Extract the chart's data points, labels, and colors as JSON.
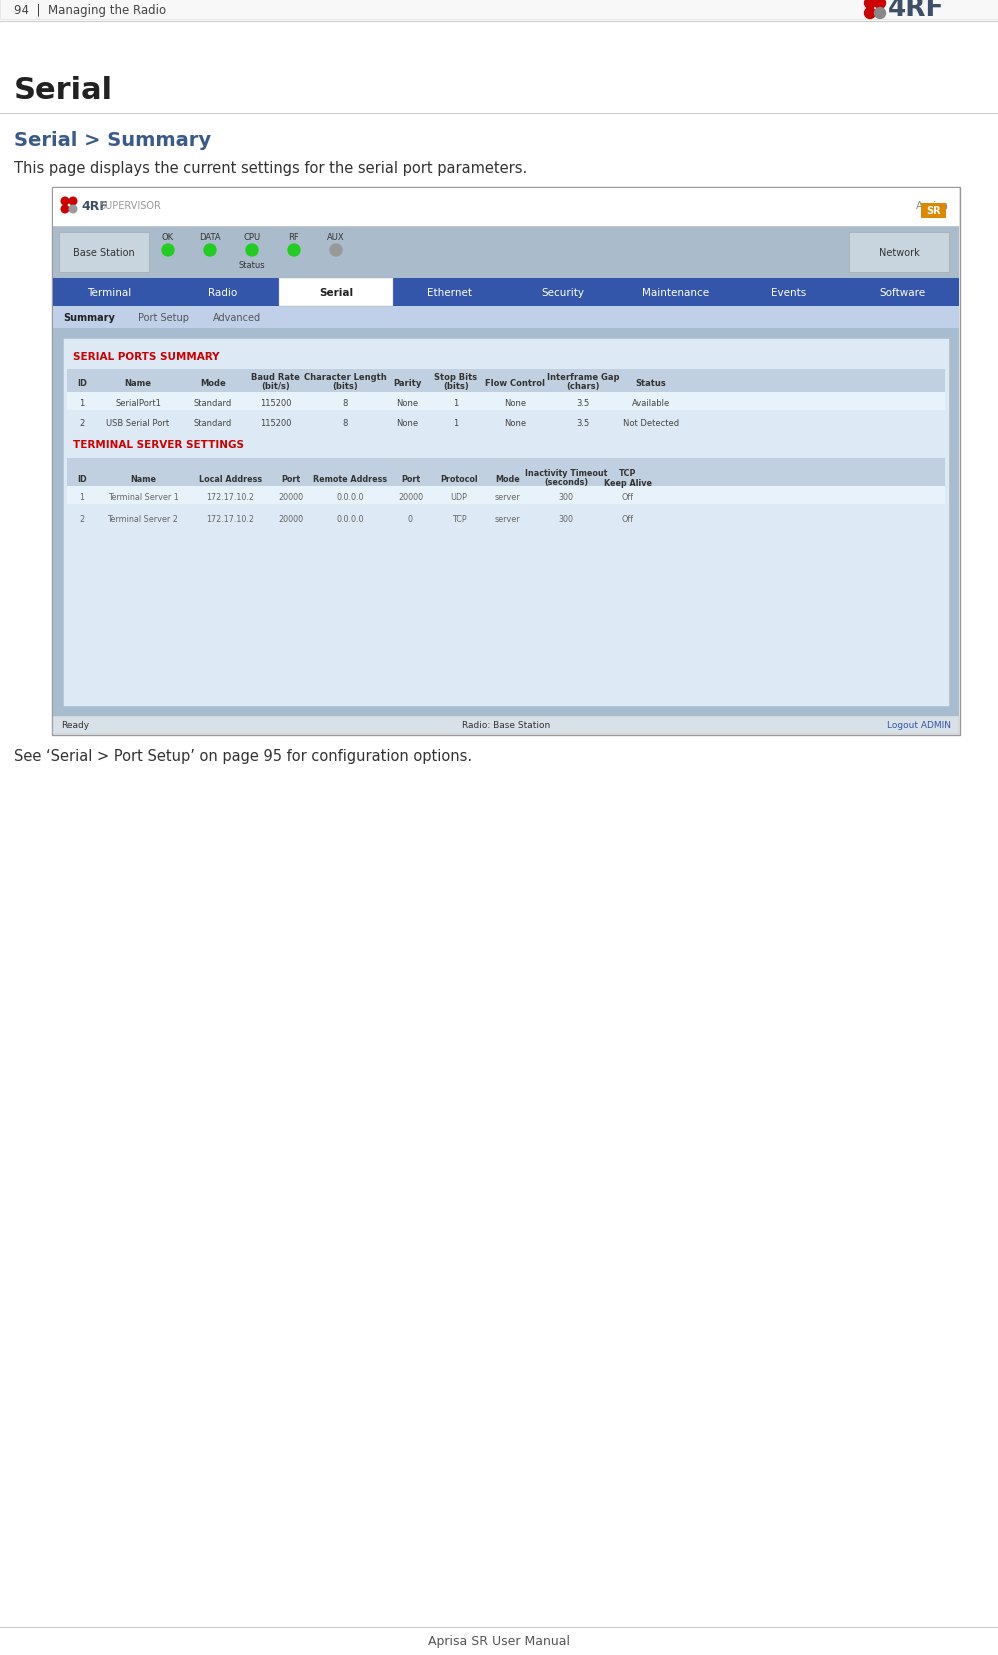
{
  "page_header": "94  |  Managing the Radio",
  "section_title": "Serial",
  "subsection_title": "Serial > Summary",
  "description": "This page displays the current settings for the serial port parameters.",
  "footer_note": "See ‘Serial > Port Setup’ on page 95 for configuration options.",
  "footer_text": "Aprisa SR User Manual",
  "nav_tabs": [
    "Terminal",
    "Radio",
    "Serial",
    "Ethernet",
    "Security",
    "Maintenance",
    "Events",
    "Software"
  ],
  "active_tab": "Serial",
  "sub_tabs": [
    "Summary",
    "Port Setup",
    "Advanced"
  ],
  "active_sub_tab": "Summary",
  "base_station_label": "Base Station",
  "network_label": "Network",
  "status_labels": [
    "OK",
    "DATA",
    "CPU",
    "RF",
    "AUX"
  ],
  "status_label_under": "Status",
  "serial_ports_section": "SERIAL PORTS SUMMARY",
  "serial_ports_data": [
    [
      "1",
      "SerialPort1",
      "Standard",
      "115200",
      "8",
      "None",
      "1",
      "None",
      "3.5",
      "Available"
    ],
    [
      "2",
      "USB Serial Port",
      "Standard",
      "115200",
      "8",
      "None",
      "1",
      "None",
      "3.5",
      "Not Detected"
    ]
  ],
  "terminal_server_section": "TERMINAL SERVER SETTINGS",
  "terminal_server_data": [
    [
      "1",
      "Terminal Server 1",
      "172.17.10.2",
      "20000",
      "0.0.0.0",
      "20000",
      "UDP",
      "server",
      "300",
      "Off"
    ],
    [
      "2",
      "Terminal Server 2",
      "172.17.10.2",
      "20000",
      "0.0.0.0",
      "0",
      "TCP",
      "server",
      "300",
      "Off"
    ]
  ],
  "ready_text": "Ready",
  "radio_text": "Radio: Base Station",
  "logout_text": "Logout ADMIN",
  "bg_color": "#ffffff",
  "header_bar_color": "#3355aa",
  "sub_tab_bar_color": "#b8cce8",
  "content_bg_color": "#b0c4d8",
  "table_panel_bg": "#dce8f4",
  "section_title_color": "#cc0000",
  "logo_red_color": "#cc0000",
  "logo_dark_color": "#3d5068",
  "aprisa_orange": "#cc6600"
}
